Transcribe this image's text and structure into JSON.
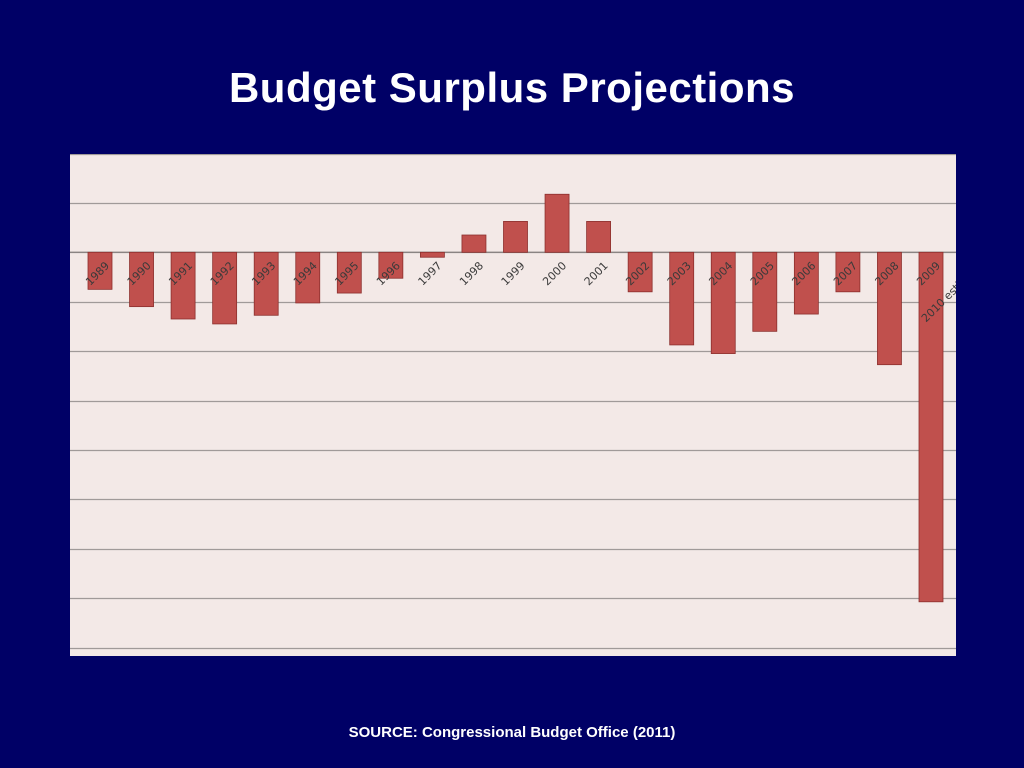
{
  "slide": {
    "title": "Budget Surplus Projections",
    "source": "SOURCE: Congressional Budget Office (2011)"
  },
  "colors": {
    "background": "#000066",
    "plot_background": "#f3e9e7",
    "bar_fill": "#c0504d",
    "bar_stroke": "#8c2f2d",
    "gridline": "#a09a99",
    "axis_label": "#3a3a3a"
  },
  "chart_data": {
    "type": "bar",
    "title": "",
    "xlabel": "",
    "ylabel": "",
    "grid": true,
    "legend": "none",
    "ylim": [
      -1600,
      400
    ],
    "categories": [
      "1989",
      "1990",
      "1991",
      "1992",
      "1993",
      "1994",
      "1995",
      "1996",
      "1997",
      "1998",
      "1999",
      "2000",
      "2001",
      "2002",
      "2003",
      "2004",
      "2005",
      "2006",
      "2007",
      "2008",
      "2009",
      "2010 estimate"
    ],
    "values": [
      -150,
      -220,
      -270,
      -290,
      -255,
      -205,
      -165,
      -105,
      -20,
      70,
      125,
      235,
      125,
      -160,
      -375,
      -410,
      -320,
      -250,
      -160,
      -455,
      -1415,
      null
    ]
  }
}
